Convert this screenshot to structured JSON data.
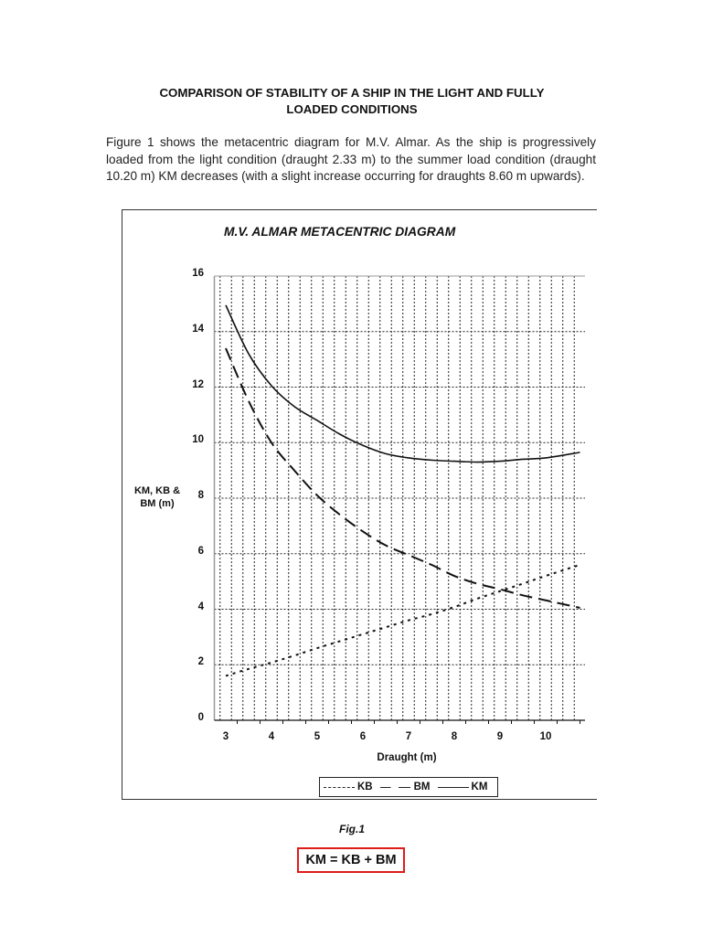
{
  "document": {
    "title_line1": "COMPARISON OF STABILITY OF A SHIP IN THE LIGHT AND FULLY",
    "title_line2": "LOADED CONDITIONS",
    "paragraph": "Figure 1 shows the metacentric diagram for M.V. Almar. As the ship is progressively loaded from the light condition (draught 2.33 m) to the summer load condition (draught 10.20 m) KM decreases (with a slight increase occurring for draughts 8.60 m upwards).",
    "figure_caption": "Fig.1",
    "formula": "KM = KB + BM",
    "formula_border_color": "#e01b1b"
  },
  "chart_data": {
    "type": "line",
    "title": "M.V. ALMAR METACENTRIC DIAGRAM",
    "xlabel": "Draught (m)",
    "ylabel": "KM, KB & BM (m)",
    "xlim": [
      2.75,
      10.85
    ],
    "ylim": [
      0,
      16
    ],
    "x_ticks": [
      3,
      4,
      5,
      6,
      7,
      8,
      9,
      10
    ],
    "y_ticks": [
      0,
      2,
      4,
      6,
      8,
      10,
      12,
      14,
      16
    ],
    "grid": true,
    "grid_x_step": 0.25,
    "legend_position": "bottom",
    "x": [
      3.0,
      3.5,
      4.0,
      4.5,
      5.0,
      5.5,
      6.0,
      6.5,
      7.0,
      7.5,
      8.0,
      8.5,
      9.0,
      9.5,
      10.0,
      10.75
    ],
    "series": [
      {
        "name": "KB",
        "style": "dotted",
        "values": [
          1.6,
          1.85,
          2.08,
          2.33,
          2.6,
          2.85,
          3.1,
          3.35,
          3.6,
          3.82,
          4.08,
          4.38,
          4.65,
          4.92,
          5.2,
          5.6
        ]
      },
      {
        "name": "BM",
        "style": "dashed",
        "values": [
          13.4,
          11.5,
          10.0,
          9.0,
          8.1,
          7.4,
          6.8,
          6.3,
          5.95,
          5.6,
          5.2,
          4.92,
          4.72,
          4.5,
          4.32,
          4.05
        ]
      },
      {
        "name": "KM",
        "style": "solid",
        "values": [
          14.95,
          13.2,
          12.05,
          11.3,
          10.8,
          10.3,
          9.9,
          9.6,
          9.45,
          9.37,
          9.33,
          9.3,
          9.33,
          9.4,
          9.45,
          9.65
        ]
      }
    ],
    "legend": [
      "KB",
      "BM",
      "KM"
    ]
  }
}
